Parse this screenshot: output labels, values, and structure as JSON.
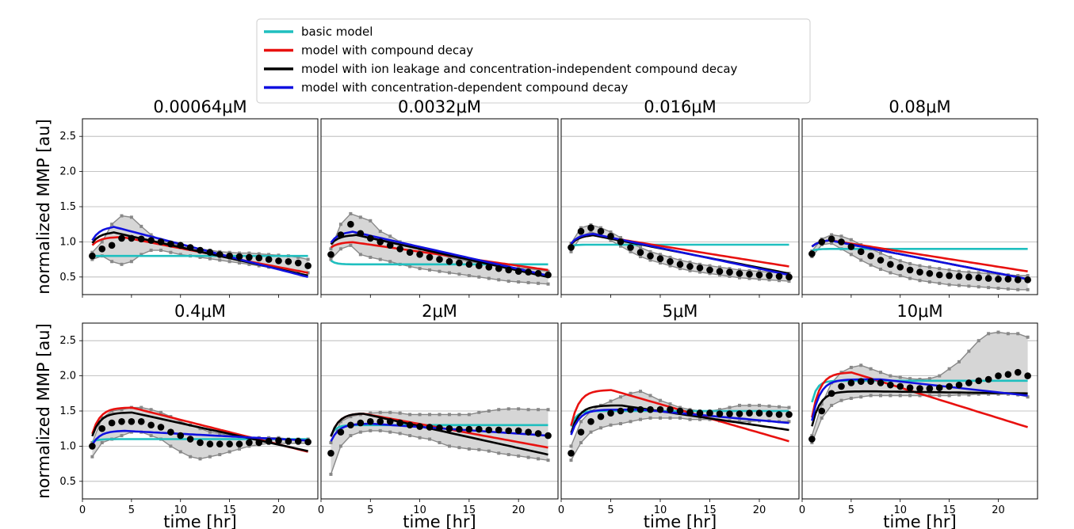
{
  "chart_data": {
    "type": "line",
    "ylabel": "normalized MMP [au]",
    "xlabel": "time [hr]",
    "xlim": [
      0,
      24
    ],
    "ylim": [
      0.25,
      2.75
    ],
    "yticks": [
      0.5,
      1.0,
      1.5,
      2.0,
      2.5
    ],
    "xticks": [
      0,
      5,
      10,
      15,
      20
    ],
    "grid": "horizontal",
    "legend": {
      "placement": "top-center",
      "entries": [
        {
          "name": "basic model",
          "color": "#1fbfbf"
        },
        {
          "name": "model with compound decay",
          "color": "#e8110f"
        },
        {
          "name": "model with ion leakage and concentration-independent compound decay",
          "color": "#000000"
        },
        {
          "name": "model with concentration-dependent compound decay",
          "color": "#1010e0"
        }
      ]
    },
    "panels": [
      {
        "title": "0.00064μM",
        "basic": 0.8,
        "decay": [
          1.07,
          4,
          0.56
        ],
        "ion": [
          1.14,
          3,
          0.52
        ],
        "dep": [
          1.22,
          3,
          0.5
        ],
        "data_pts": [
          0.8,
          0.9,
          0.95,
          1.05,
          1.05,
          1.04,
          1.02,
          1.0,
          0.97,
          0.95,
          0.92,
          0.88,
          0.85,
          0.82,
          0.8,
          0.79,
          0.78,
          0.77,
          0.75,
          0.73,
          0.72,
          0.7,
          0.66
        ],
        "upper": [
          0.85,
          1.0,
          1.25,
          1.37,
          1.35,
          1.22,
          1.1,
          1.02,
          0.98,
          0.95,
          0.92,
          0.9,
          0.88,
          0.86,
          0.85,
          0.84,
          0.84,
          0.83,
          0.82,
          0.81,
          0.8,
          0.78,
          0.75
        ],
        "lower": [
          0.75,
          0.8,
          0.72,
          0.68,
          0.72,
          0.82,
          0.88,
          0.88,
          0.85,
          0.82,
          0.8,
          0.78,
          0.76,
          0.74,
          0.72,
          0.7,
          0.68,
          0.66,
          0.64,
          0.62,
          0.6,
          0.58,
          0.56
        ]
      },
      {
        "title": "0.0032μM",
        "basic": 0.68,
        "decay": [
          1.0,
          3,
          0.6
        ],
        "ion": [
          1.1,
          3.5,
          0.5
        ],
        "dep": [
          1.15,
          3,
          0.52
        ],
        "data_pts": [
          0.82,
          1.1,
          1.25,
          1.12,
          1.05,
          1.0,
          0.95,
          0.9,
          0.85,
          0.82,
          0.78,
          0.75,
          0.72,
          0.7,
          0.68,
          0.66,
          0.64,
          0.62,
          0.6,
          0.58,
          0.57,
          0.55,
          0.53
        ],
        "upper": [
          0.9,
          1.25,
          1.4,
          1.35,
          1.3,
          1.15,
          1.08,
          1.0,
          0.95,
          0.9,
          0.86,
          0.82,
          0.78,
          0.75,
          0.72,
          0.7,
          0.68,
          0.66,
          0.64,
          0.63,
          0.62,
          0.6,
          0.58
        ],
        "lower": [
          0.75,
          0.9,
          0.95,
          0.82,
          0.78,
          0.75,
          0.72,
          0.68,
          0.65,
          0.62,
          0.6,
          0.58,
          0.56,
          0.54,
          0.52,
          0.5,
          0.48,
          0.46,
          0.44,
          0.43,
          0.42,
          0.41,
          0.4
        ],
        "xlim_note": ""
      },
      {
        "title": "0.016μM",
        "basic": 0.96,
        "decay": [
          1.1,
          3,
          0.65
        ],
        "ion": [
          1.1,
          3,
          0.55
        ],
        "dep": [
          1.12,
          3,
          0.53
        ],
        "data_pts": [
          0.92,
          1.15,
          1.2,
          1.15,
          1.08,
          1.0,
          0.92,
          0.85,
          0.8,
          0.76,
          0.72,
          0.68,
          0.65,
          0.63,
          0.6,
          0.58,
          0.57,
          0.55,
          0.54,
          0.53,
          0.52,
          0.51,
          0.5
        ],
        "upper": [
          0.98,
          1.2,
          1.24,
          1.2,
          1.14,
          1.06,
          0.98,
          0.92,
          0.86,
          0.82,
          0.78,
          0.74,
          0.71,
          0.68,
          0.66,
          0.64,
          0.62,
          0.6,
          0.59,
          0.58,
          0.57,
          0.56,
          0.55
        ],
        "lower": [
          0.86,
          1.08,
          1.14,
          1.1,
          1.02,
          0.94,
          0.86,
          0.79,
          0.74,
          0.7,
          0.66,
          0.62,
          0.59,
          0.57,
          0.55,
          0.53,
          0.51,
          0.49,
          0.48,
          0.47,
          0.46,
          0.45,
          0.44
        ]
      },
      {
        "title": "0.08μM",
        "basic": 0.9,
        "decay": [
          1.03,
          2.5,
          0.58
        ],
        "ion": [
          1.03,
          2.5,
          0.47
        ],
        "dep": [
          1.03,
          2.5,
          0.47
        ],
        "data_pts": [
          0.83,
          1.0,
          1.04,
          1.0,
          0.93,
          0.86,
          0.8,
          0.74,
          0.68,
          0.64,
          0.6,
          0.57,
          0.55,
          0.53,
          0.52,
          0.51,
          0.5,
          0.49,
          0.48,
          0.47,
          0.47,
          0.46,
          0.46
        ],
        "upper": [
          0.87,
          1.04,
          1.1,
          1.08,
          1.03,
          0.96,
          0.9,
          0.84,
          0.78,
          0.73,
          0.69,
          0.66,
          0.64,
          0.62,
          0.6,
          0.58,
          0.57,
          0.56,
          0.55,
          0.54,
          0.53,
          0.52,
          0.52
        ],
        "lower": [
          0.79,
          0.96,
          0.98,
          0.9,
          0.82,
          0.74,
          0.67,
          0.61,
          0.56,
          0.52,
          0.48,
          0.45,
          0.43,
          0.41,
          0.39,
          0.38,
          0.37,
          0.36,
          0.35,
          0.34,
          0.33,
          0.32,
          0.32
        ]
      },
      {
        "title": "0.4μM",
        "basic": 1.1,
        "decay": [
          1.55,
          5,
          0.92
        ],
        "ion": [
          1.48,
          5,
          0.93
        ],
        "dep": [
          1.22,
          4,
          1.08
        ],
        "data_pts": [
          1.0,
          1.25,
          1.33,
          1.35,
          1.35,
          1.35,
          1.3,
          1.27,
          1.2,
          1.15,
          1.1,
          1.05,
          1.03,
          1.03,
          1.03,
          1.03,
          1.05,
          1.05,
          1.07,
          1.08,
          1.07,
          1.07,
          1.06
        ],
        "upper": [
          1.05,
          1.4,
          1.5,
          1.52,
          1.55,
          1.55,
          1.52,
          1.48,
          1.42,
          1.35,
          1.3,
          1.25,
          1.2,
          1.18,
          1.15,
          1.12,
          1.12,
          1.12,
          1.12,
          1.12,
          1.1,
          1.1,
          1.1
        ],
        "lower": [
          0.85,
          1.05,
          1.1,
          1.15,
          1.2,
          1.2,
          1.15,
          1.1,
          1.0,
          0.92,
          0.85,
          0.82,
          0.85,
          0.88,
          0.92,
          0.96,
          1.0,
          1.02,
          1.04,
          1.04,
          1.04,
          1.04,
          1.04
        ]
      },
      {
        "title": "2μM",
        "basic": 1.3,
        "decay": [
          1.47,
          4,
          0.98
        ],
        "ion": [
          1.47,
          4,
          0.88
        ],
        "dep": [
          1.32,
          5,
          1.15
        ],
        "data_pts": [
          0.9,
          1.2,
          1.3,
          1.33,
          1.35,
          1.35,
          1.35,
          1.33,
          1.3,
          1.28,
          1.27,
          1.26,
          1.25,
          1.24,
          1.24,
          1.24,
          1.23,
          1.23,
          1.22,
          1.22,
          1.2,
          1.18,
          1.15
        ],
        "upper": [
          1.05,
          1.35,
          1.42,
          1.45,
          1.47,
          1.48,
          1.48,
          1.47,
          1.45,
          1.45,
          1.45,
          1.45,
          1.45,
          1.45,
          1.45,
          1.48,
          1.5,
          1.52,
          1.53,
          1.53,
          1.52,
          1.52,
          1.52
        ],
        "lower": [
          0.6,
          1.0,
          1.15,
          1.2,
          1.22,
          1.22,
          1.2,
          1.18,
          1.15,
          1.12,
          1.1,
          1.05,
          1.0,
          0.98,
          0.96,
          0.95,
          0.93,
          0.9,
          0.88,
          0.86,
          0.84,
          0.82,
          0.8
        ]
      },
      {
        "title": "5μM",
        "basic": 1.5,
        "decay": [
          1.8,
          5,
          1.07
        ],
        "ion": [
          1.58,
          6,
          1.23
        ],
        "dep": [
          1.52,
          8,
          1.33
        ],
        "data_pts": [
          0.9,
          1.2,
          1.35,
          1.42,
          1.47,
          1.5,
          1.52,
          1.52,
          1.52,
          1.52,
          1.52,
          1.5,
          1.48,
          1.47,
          1.47,
          1.46,
          1.46,
          1.46,
          1.47,
          1.47,
          1.46,
          1.45,
          1.45
        ],
        "upper": [
          1.0,
          1.35,
          1.5,
          1.58,
          1.64,
          1.7,
          1.75,
          1.78,
          1.72,
          1.65,
          1.6,
          1.55,
          1.52,
          1.5,
          1.5,
          1.52,
          1.55,
          1.58,
          1.58,
          1.58,
          1.57,
          1.56,
          1.55
        ],
        "lower": [
          0.8,
          1.05,
          1.2,
          1.26,
          1.3,
          1.32,
          1.35,
          1.38,
          1.4,
          1.4,
          1.4,
          1.4,
          1.38,
          1.38,
          1.38,
          1.36,
          1.36,
          1.35,
          1.35,
          1.36,
          1.36,
          1.35,
          1.35
        ]
      },
      {
        "title": "10μM",
        "basic": 1.93,
        "decay": [
          2.05,
          5,
          1.27
        ],
        "ion": [
          1.78,
          7,
          1.75
        ],
        "dep": [
          1.95,
          8,
          1.72
        ],
        "data_pts": [
          1.1,
          1.5,
          1.75,
          1.85,
          1.9,
          1.92,
          1.92,
          1.9,
          1.87,
          1.85,
          1.83,
          1.82,
          1.82,
          1.83,
          1.85,
          1.87,
          1.9,
          1.93,
          1.95,
          2.0,
          2.02,
          2.05,
          2.0
        ],
        "upper": [
          1.15,
          1.6,
          1.9,
          2.05,
          2.12,
          2.15,
          2.1,
          2.05,
          2.0,
          1.98,
          1.96,
          1.95,
          1.96,
          2.0,
          2.1,
          2.2,
          2.35,
          2.5,
          2.6,
          2.62,
          2.6,
          2.6,
          2.55
        ],
        "lower": [
          1.05,
          1.4,
          1.58,
          1.65,
          1.68,
          1.7,
          1.72,
          1.72,
          1.72,
          1.72,
          1.72,
          1.72,
          1.72,
          1.72,
          1.72,
          1.73,
          1.73,
          1.74,
          1.74,
          1.74,
          1.74,
          1.73,
          1.7
        ]
      }
    ]
  }
}
